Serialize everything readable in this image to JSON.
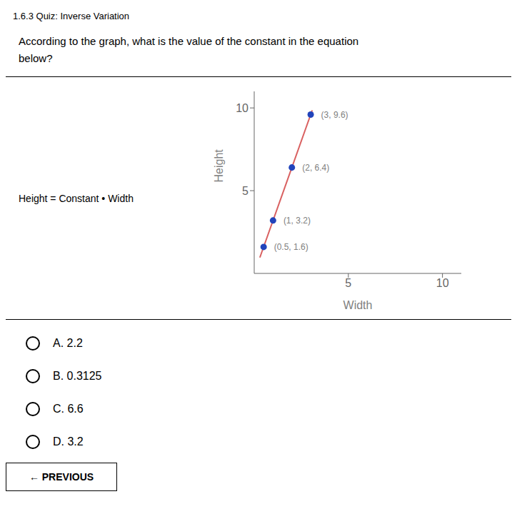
{
  "chart_data": {
    "type": "scatter",
    "title": "1.6.3 Quiz: Inverse Variation",
    "annotations": [
      "According to the graph, what is the value of the constant in the equation",
      "below?",
      "Height = Constant • Width",
      "A. 2.2",
      "B. 0.3125",
      "C. 6.6",
      "D. 3.2",
      "← PREVIOUS"
    ],
    "x_label": "Width",
    "y_label": "Height",
    "xlim": [
      0,
      11
    ],
    "ylim": [
      0,
      11
    ],
    "xticks": [
      5,
      10
    ],
    "yticks": [
      5,
      10
    ],
    "grid": false,
    "series": [
      {
        "type": "line",
        "color": "#d96060",
        "line_style": "solid",
        "x": [
          0.3,
          3.08
        ],
        "values": [
          0.96,
          9.856
        ]
      },
      {
        "type": "scatter",
        "color": "#2244bb",
        "marker": "circle",
        "x": [
          0.5,
          1,
          2,
          3
        ],
        "values": [
          1.6,
          3.2,
          6.4,
          9.6
        ],
        "value_labels": [
          "(0.5, 1.6)",
          "(1, 3.2)",
          "(2, 6.4)",
          "(3, 9.6)"
        ]
      }
    ]
  }
}
